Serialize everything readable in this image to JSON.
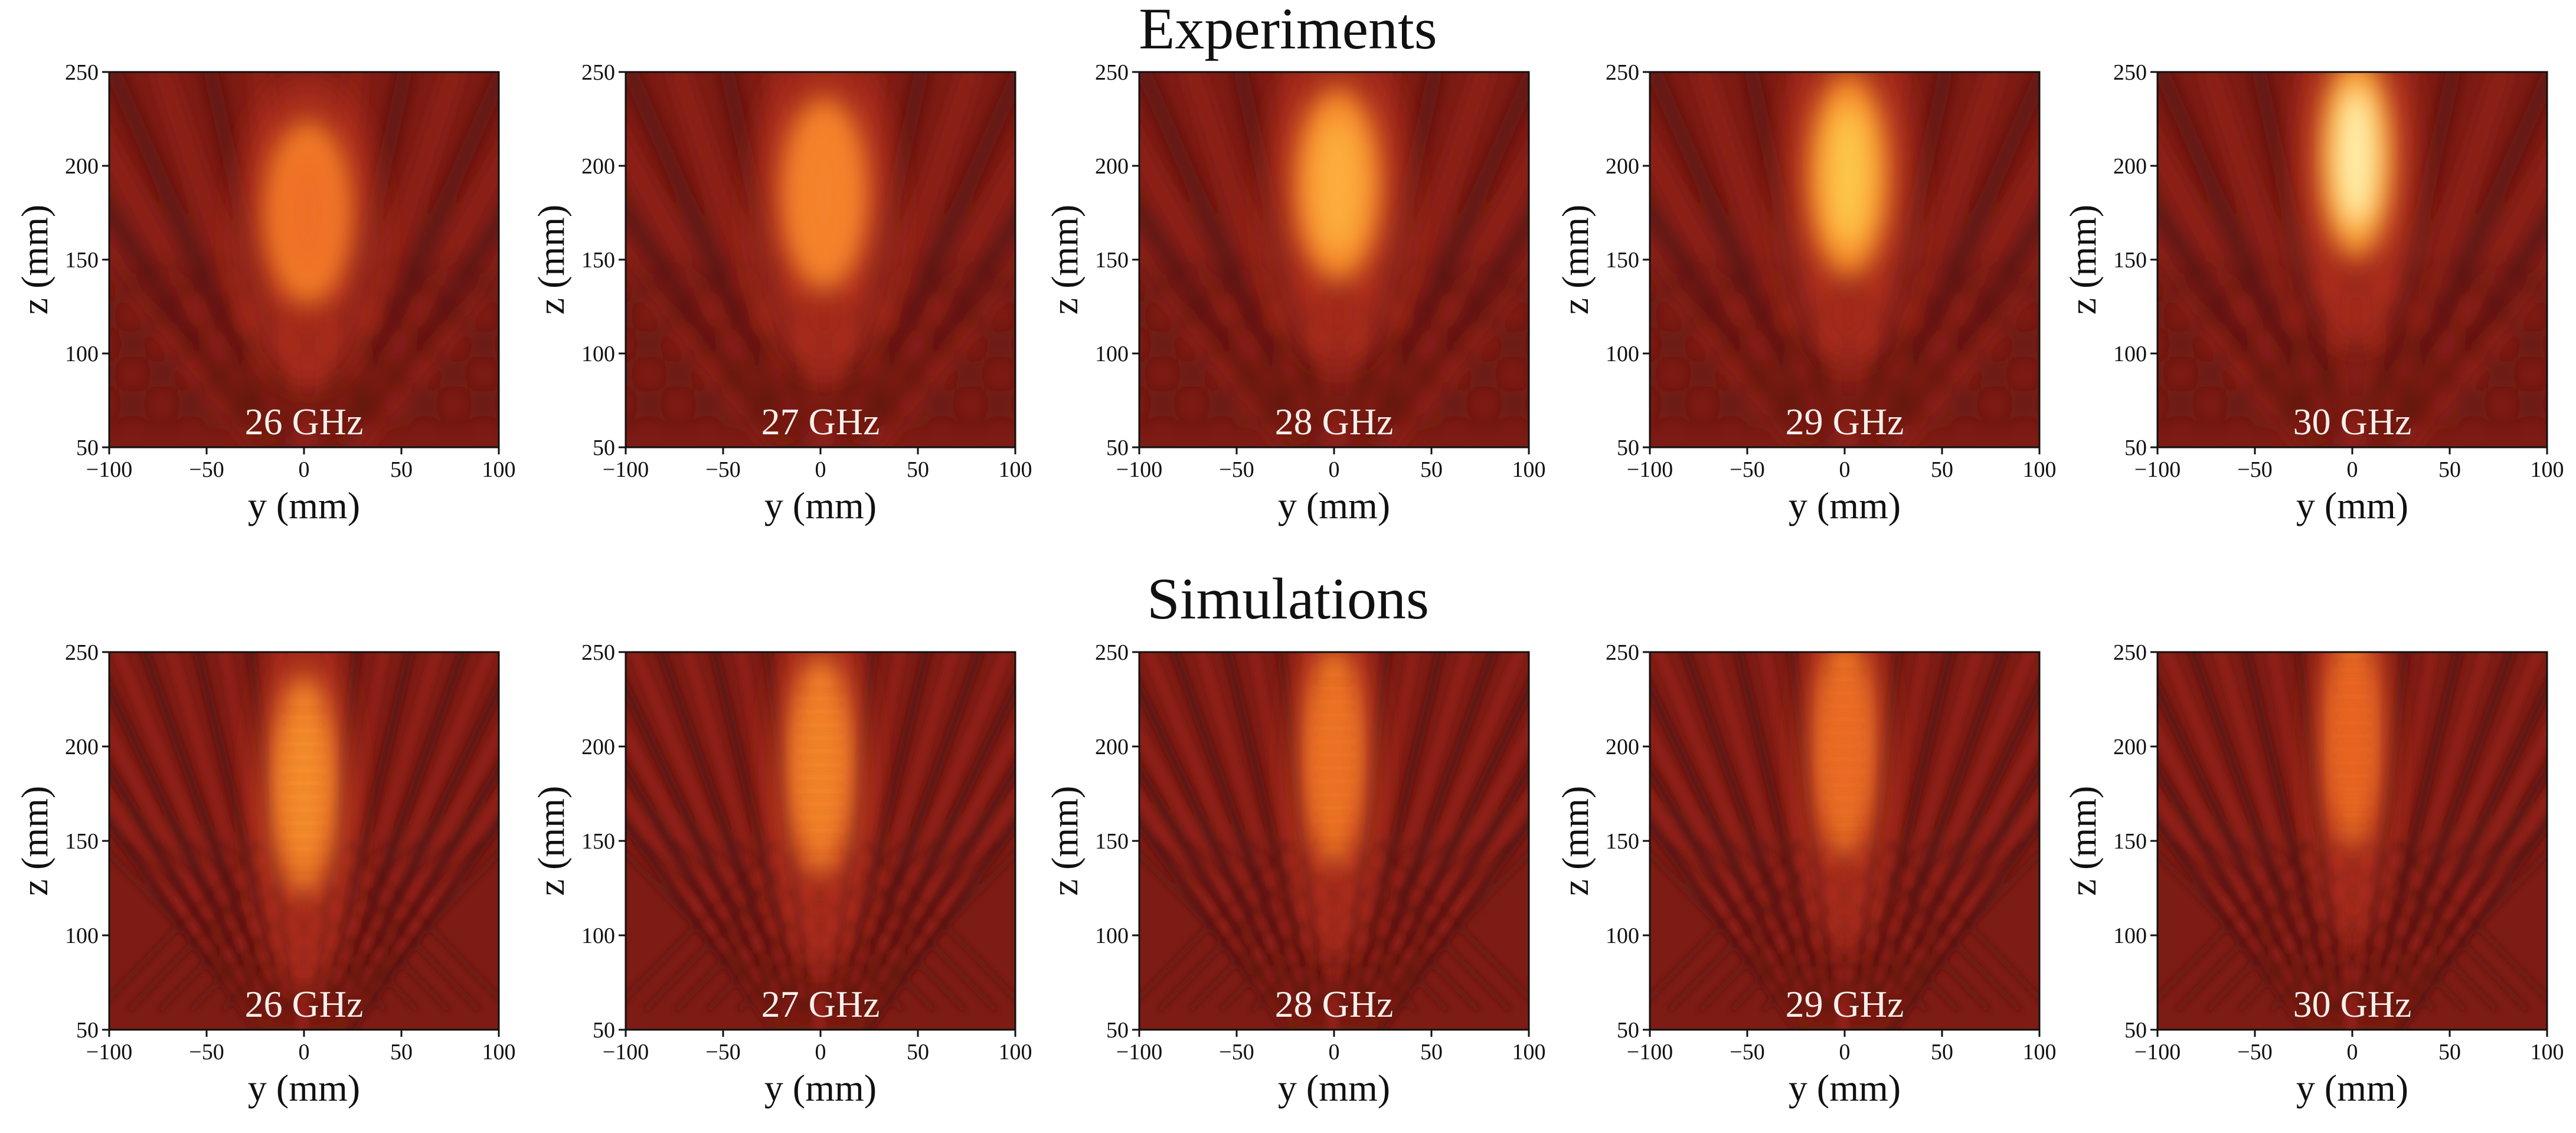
{
  "chart_data": {
    "type": "heatmap",
    "colormap": "hot (dark red to yellow/white)",
    "rows": [
      {
        "title": "Experiments",
        "kind": "experiment",
        "panels": [
          {
            "label": "26 GHz",
            "freq_ghz": 26,
            "peak_intensity": 0.7,
            "focus_y_mm": 2,
            "focus_z_mm": 175,
            "focus_len_mm": 38,
            "focus_wid_mm": 14
          },
          {
            "label": "27 GHz",
            "freq_ghz": 27,
            "peak_intensity": 0.74,
            "focus_y_mm": 2,
            "focus_z_mm": 185,
            "focus_len_mm": 40,
            "focus_wid_mm": 14
          },
          {
            "label": "28 GHz",
            "freq_ghz": 28,
            "peak_intensity": 0.82,
            "focus_y_mm": 2,
            "focus_z_mm": 190,
            "focus_len_mm": 40,
            "focus_wid_mm": 14
          },
          {
            "label": "29 GHz",
            "freq_ghz": 29,
            "peak_intensity": 0.86,
            "focus_y_mm": 2,
            "focus_z_mm": 195,
            "focus_len_mm": 42,
            "focus_wid_mm": 13
          },
          {
            "label": "30 GHz",
            "freq_ghz": 30,
            "peak_intensity": 0.96,
            "focus_y_mm": 2,
            "focus_z_mm": 205,
            "focus_len_mm": 42,
            "focus_wid_mm": 12
          }
        ]
      },
      {
        "title": "Simulations",
        "kind": "simulation",
        "panels": [
          {
            "label": "26 GHz",
            "freq_ghz": 26,
            "peak_intensity": 0.78,
            "focus_y_mm": 0,
            "focus_z_mm": 180,
            "focus_len_mm": 45,
            "focus_wid_mm": 10
          },
          {
            "label": "27 GHz",
            "freq_ghz": 27,
            "peak_intensity": 0.76,
            "focus_y_mm": 0,
            "focus_z_mm": 190,
            "focus_len_mm": 45,
            "focus_wid_mm": 10
          },
          {
            "label": "28 GHz",
            "freq_ghz": 28,
            "peak_intensity": 0.72,
            "focus_y_mm": 0,
            "focus_z_mm": 195,
            "focus_len_mm": 45,
            "focus_wid_mm": 9
          },
          {
            "label": "29 GHz",
            "freq_ghz": 29,
            "peak_intensity": 0.7,
            "focus_y_mm": 0,
            "focus_z_mm": 200,
            "focus_len_mm": 45,
            "focus_wid_mm": 9
          },
          {
            "label": "30 GHz",
            "freq_ghz": 30,
            "peak_intensity": 0.68,
            "focus_y_mm": 0,
            "focus_z_mm": 205,
            "focus_len_mm": 45,
            "focus_wid_mm": 8
          }
        ]
      }
    ],
    "xlabel": "y (mm)",
    "ylabel": "z (mm)",
    "xlim": [
      -100,
      100
    ],
    "ylim": [
      50,
      250
    ],
    "xticks": [
      -100,
      -50,
      0,
      50,
      100
    ],
    "yticks": [
      50,
      100,
      150,
      200,
      250
    ]
  }
}
